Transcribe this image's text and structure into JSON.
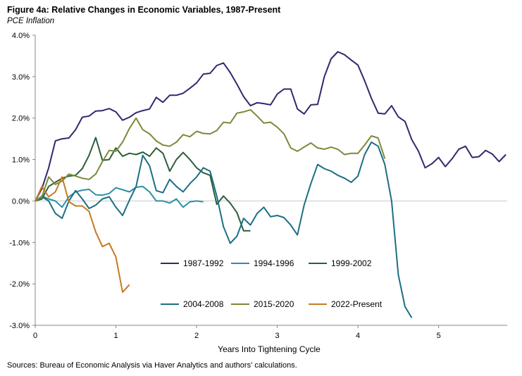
{
  "header": {
    "title": "Figure 4a: Relative Changes in Economic Variables, 1987-Present",
    "subtitle": "PCE Inflation"
  },
  "footer": {
    "source": "Sources: Bureau of Economic Analysis via Haver Analytics and authors' calculations."
  },
  "chart_data": {
    "type": "line",
    "title": "Figure 4a: Relative Changes in Economic Variables, 1987-Present",
    "subtitle": "PCE Inflation",
    "xlabel": "Years Into Tightening Cycle",
    "ylabel": "",
    "xlim": [
      0,
      5.85
    ],
    "ylim": [
      -3.0,
      4.0
    ],
    "x_ticks": [
      0,
      1,
      2,
      3,
      4,
      5
    ],
    "x_tick_labels": [
      "0",
      "1",
      "2",
      "3",
      "4",
      "5"
    ],
    "y_ticks": [
      -3,
      -2,
      -1,
      0,
      1,
      2,
      3,
      4
    ],
    "y_tick_labels": [
      "-3.0%",
      "-2.0%",
      "-1.0%",
      "0.0%",
      "1.0%",
      "2.0%",
      "3.0%",
      "4.0%"
    ],
    "grid": false,
    "legend_position": "lower-center",
    "series": [
      {
        "name": "1987-1992",
        "color": "#2e2a6e",
        "x": [
          0,
          0.083,
          0.167,
          0.25,
          0.333,
          0.417,
          0.5,
          0.583,
          0.667,
          0.75,
          0.833,
          0.917,
          1.0,
          1.083,
          1.167,
          1.25,
          1.333,
          1.417,
          1.5,
          1.583,
          1.667,
          1.75,
          1.833,
          1.917,
          2.0,
          2.083,
          2.167,
          2.25,
          2.333,
          2.417,
          2.5,
          2.583,
          2.667,
          2.75,
          2.833,
          2.917,
          3.0,
          3.083,
          3.167,
          3.25,
          3.333,
          3.417,
          3.5,
          3.583,
          3.667,
          3.75,
          3.833,
          3.917,
          4.0,
          4.083,
          4.167,
          4.25,
          4.333,
          4.417,
          4.5,
          4.583,
          4.667,
          4.75,
          4.833,
          4.917,
          5.0,
          5.083,
          5.167,
          5.25,
          5.333,
          5.417,
          5.5,
          5.583,
          5.667,
          5.75,
          5.833
        ],
        "y": [
          0,
          0.3,
          0.8,
          1.45,
          1.5,
          1.52,
          1.72,
          2.02,
          2.05,
          2.17,
          2.18,
          2.23,
          2.15,
          1.95,
          2.02,
          2.13,
          2.18,
          2.22,
          2.5,
          2.38,
          2.55,
          2.55,
          2.6,
          2.72,
          2.85,
          3.06,
          3.08,
          3.27,
          3.33,
          3.1,
          2.82,
          2.52,
          2.3,
          2.37,
          2.35,
          2.32,
          2.58,
          2.7,
          2.7,
          2.22,
          2.1,
          2.32,
          2.33,
          3.0,
          3.43,
          3.6,
          3.53,
          3.4,
          3.28,
          2.9,
          2.48,
          2.12,
          2.1,
          2.3,
          2.03,
          1.92,
          1.48,
          1.2,
          0.8,
          0.9,
          1.05,
          0.83,
          1.02,
          1.25,
          1.32,
          1.05,
          1.07,
          1.22,
          1.13,
          0.95,
          1.12
        ]
      },
      {
        "name": "1994-1996",
        "color": "#2f8fa6",
        "x": [
          0,
          0.083,
          0.167,
          0.25,
          0.333,
          0.417,
          0.5,
          0.583,
          0.667,
          0.75,
          0.833,
          0.917,
          1.0,
          1.083,
          1.167,
          1.25,
          1.333,
          1.417,
          1.5,
          1.583,
          1.667,
          1.75,
          1.833,
          1.917,
          2.0,
          2.083
        ],
        "y": [
          0,
          0.12,
          0.05,
          0.0,
          -0.15,
          0.1,
          0.22,
          0.26,
          0.28,
          0.15,
          0.14,
          0.18,
          0.32,
          0.27,
          0.22,
          0.33,
          0.35,
          0.22,
          0.0,
          0.0,
          -0.05,
          0.05,
          -0.15,
          -0.02,
          0.0,
          -0.02
        ]
      },
      {
        "name": "1999-2002",
        "color": "#2c5e3a",
        "x": [
          0,
          0.083,
          0.167,
          0.25,
          0.333,
          0.417,
          0.5,
          0.583,
          0.667,
          0.75,
          0.833,
          0.917,
          1.0,
          1.083,
          1.167,
          1.25,
          1.333,
          1.417,
          1.5,
          1.583,
          1.667,
          1.75,
          1.833,
          1.917,
          2.0,
          2.083,
          2.167,
          2.25,
          2.333,
          2.417,
          2.5,
          2.583,
          2.667
        ],
        "y": [
          0,
          0.05,
          0.35,
          0.45,
          0.55,
          0.6,
          0.62,
          0.78,
          1.1,
          1.53,
          0.98,
          1.0,
          1.28,
          1.08,
          1.15,
          1.12,
          1.18,
          1.08,
          1.28,
          1.15,
          0.72,
          1.0,
          1.17,
          1.0,
          0.8,
          0.68,
          0.62,
          -0.08,
          0.12,
          -0.05,
          -0.28,
          -0.72,
          -0.72
        ]
      },
      {
        "name": "2004-2008",
        "color": "#1c6f85",
        "x": [
          0,
          0.083,
          0.167,
          0.25,
          0.333,
          0.417,
          0.5,
          0.583,
          0.667,
          0.75,
          0.833,
          0.917,
          1.0,
          1.083,
          1.167,
          1.25,
          1.333,
          1.417,
          1.5,
          1.583,
          1.667,
          1.75,
          1.833,
          1.917,
          2.0,
          2.083,
          2.167,
          2.25,
          2.333,
          2.417,
          2.5,
          2.583,
          2.667,
          2.75,
          2.833,
          2.917,
          3.0,
          3.083,
          3.167,
          3.25,
          3.333,
          3.417,
          3.5,
          3.583,
          3.667,
          3.75,
          3.833,
          3.917,
          4.0,
          4.083,
          4.167,
          4.25,
          4.333,
          4.417,
          4.5,
          4.583,
          4.667
        ],
        "y": [
          0,
          0.1,
          0.0,
          -0.3,
          -0.42,
          0.0,
          0.25,
          0.05,
          -0.18,
          -0.1,
          0.05,
          0.1,
          -0.15,
          -0.35,
          0.02,
          0.35,
          1.1,
          0.85,
          0.25,
          0.2,
          0.52,
          0.35,
          0.22,
          0.42,
          0.58,
          0.8,
          0.72,
          0.12,
          -0.62,
          -1.02,
          -0.85,
          -0.42,
          -0.58,
          -0.3,
          -0.15,
          -0.38,
          -0.35,
          -0.4,
          -0.58,
          -0.82,
          -0.1,
          0.42,
          0.88,
          0.78,
          0.72,
          0.62,
          0.55,
          0.45,
          0.6,
          1.12,
          1.42,
          1.32,
          0.88,
          0.0,
          -1.78,
          -2.55,
          -2.82
        ]
      },
      {
        "name": "2015-2020",
        "color": "#7a8a3a",
        "x": [
          0,
          0.083,
          0.167,
          0.25,
          0.333,
          0.417,
          0.5,
          0.583,
          0.667,
          0.75,
          0.833,
          0.917,
          1.0,
          1.083,
          1.167,
          1.25,
          1.333,
          1.417,
          1.5,
          1.583,
          1.667,
          1.75,
          1.833,
          1.917,
          2.0,
          2.083,
          2.167,
          2.25,
          2.333,
          2.417,
          2.5,
          2.583,
          2.667,
          2.75,
          2.833,
          2.917,
          3.0,
          3.083,
          3.167,
          3.25,
          3.333,
          3.417,
          3.5,
          3.583,
          3.667,
          3.75,
          3.833,
          3.917,
          4.0,
          4.083,
          4.167,
          4.25,
          4.333
        ],
        "y": [
          0,
          0.1,
          0.58,
          0.4,
          0.48,
          0.65,
          0.6,
          0.55,
          0.52,
          0.65,
          0.95,
          1.22,
          1.2,
          1.42,
          1.75,
          2.0,
          1.72,
          1.62,
          1.45,
          1.35,
          1.32,
          1.42,
          1.6,
          1.55,
          1.68,
          1.63,
          1.62,
          1.7,
          1.9,
          1.88,
          2.12,
          2.15,
          2.2,
          2.05,
          1.88,
          1.9,
          1.78,
          1.62,
          1.28,
          1.2,
          1.3,
          1.4,
          1.28,
          1.25,
          1.3,
          1.25,
          1.12,
          1.15,
          1.15,
          1.35,
          1.57,
          1.52,
          1.02
        ]
      },
      {
        "name": "2022-Present",
        "color": "#c67a22",
        "x": [
          0,
          0.083,
          0.167,
          0.25,
          0.333,
          0.417,
          0.5,
          0.583,
          0.667,
          0.75,
          0.833,
          0.917,
          1.0,
          1.083,
          1.167
        ],
        "y": [
          0,
          0.35,
          0.1,
          0.22,
          0.58,
          -0.02,
          -0.12,
          -0.12,
          -0.25,
          -0.75,
          -1.1,
          -1.02,
          -1.35,
          -2.2,
          -2.02
        ]
      }
    ],
    "legend": {
      "rows": [
        [
          "1987-1992",
          "1994-1996",
          "1999-2002"
        ],
        [
          "2004-2008",
          "2015-2020",
          "2022-Present"
        ]
      ]
    }
  }
}
